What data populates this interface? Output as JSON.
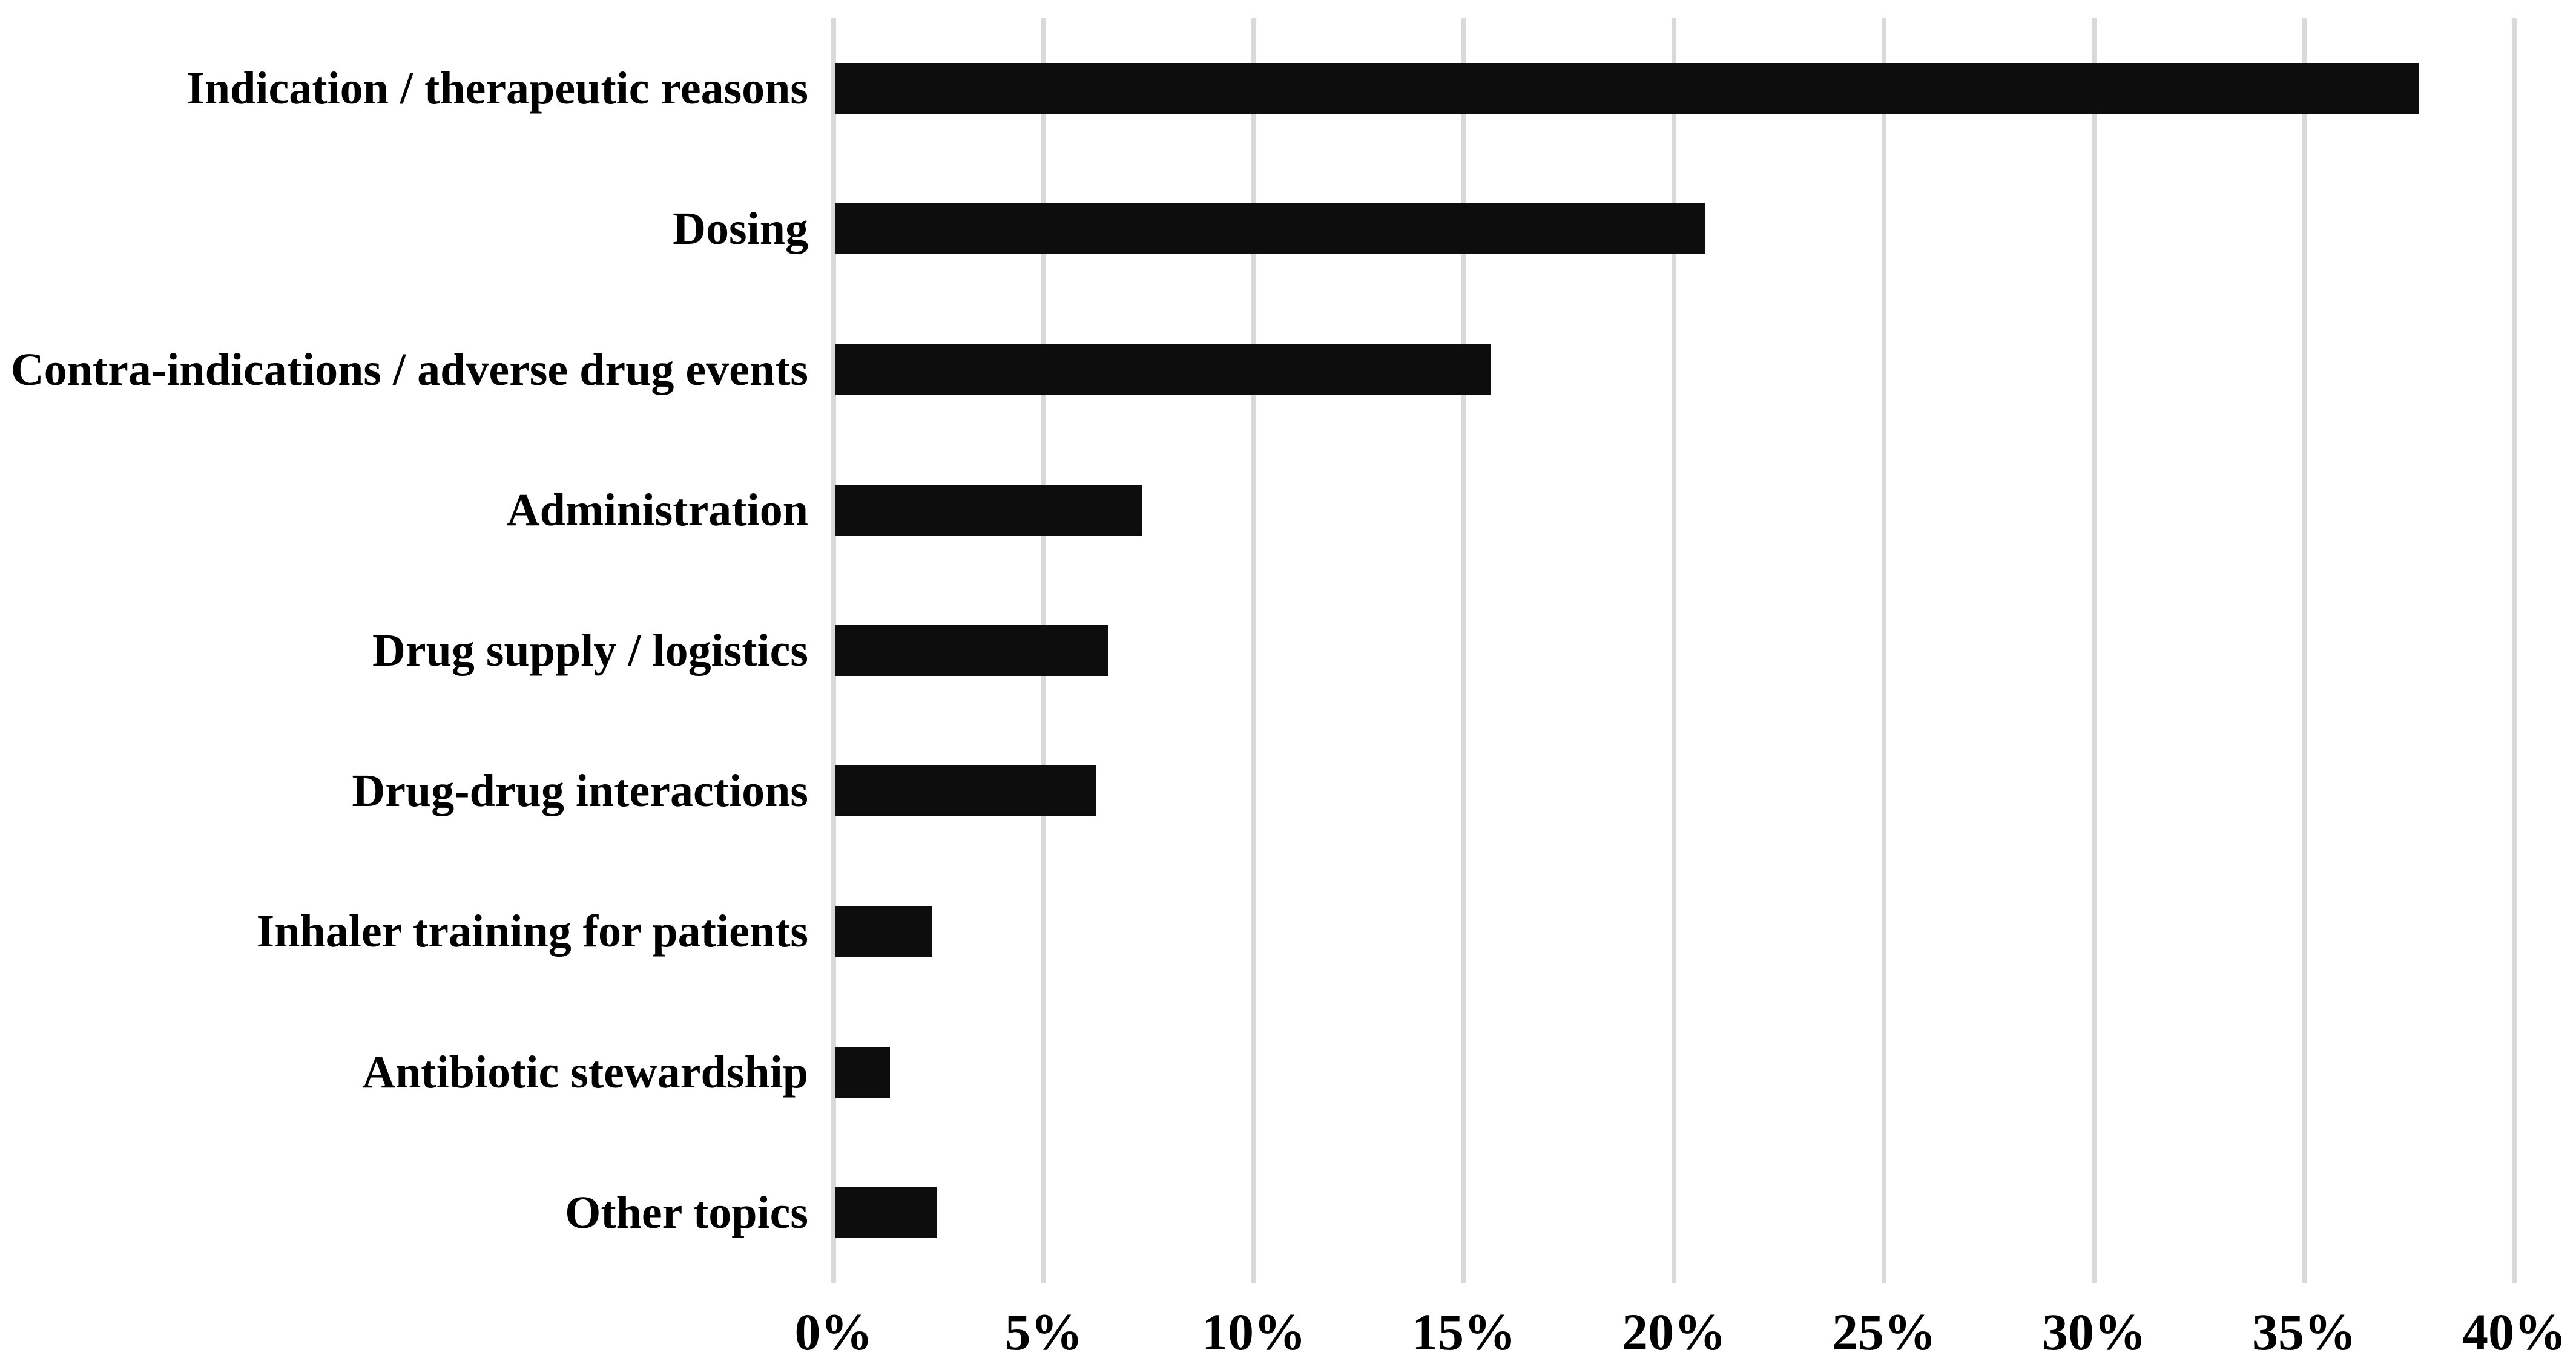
{
  "chart_data": {
    "type": "bar",
    "orientation": "horizontal",
    "title": "",
    "xlabel": "",
    "ylabel": "",
    "categories": [
      "Indication / therapeutic reasons",
      "Dosing",
      "Contra-indications / adverse drug events",
      "Administration",
      "Drug supply / logistics",
      "Drug-drug interactions",
      "Inhaler training for patients",
      "Antibiotic stewardship",
      "Other topics"
    ],
    "values": [
      37.7,
      20.7,
      15.6,
      7.3,
      6.5,
      6.2,
      2.3,
      1.3,
      2.4
    ],
    "value_unit": "%",
    "xlim": [
      0,
      40
    ],
    "x_ticks": [
      {
        "label": "0%",
        "value": 0
      },
      {
        "label": "5%",
        "value": 5
      },
      {
        "label": "10%",
        "value": 10
      },
      {
        "label": "15%",
        "value": 15
      },
      {
        "label": "20%",
        "value": 20
      },
      {
        "label": "25%",
        "value": 25
      },
      {
        "label": "30%",
        "value": 30
      },
      {
        "label": "35%",
        "value": 35
      },
      {
        "label": "40%",
        "value": 40
      }
    ],
    "grid": true,
    "legend": false,
    "colors": {
      "bar": "#0d0d0d",
      "gridline": "#d9d9d9",
      "text": "#000000",
      "background": "#ffffff"
    }
  }
}
